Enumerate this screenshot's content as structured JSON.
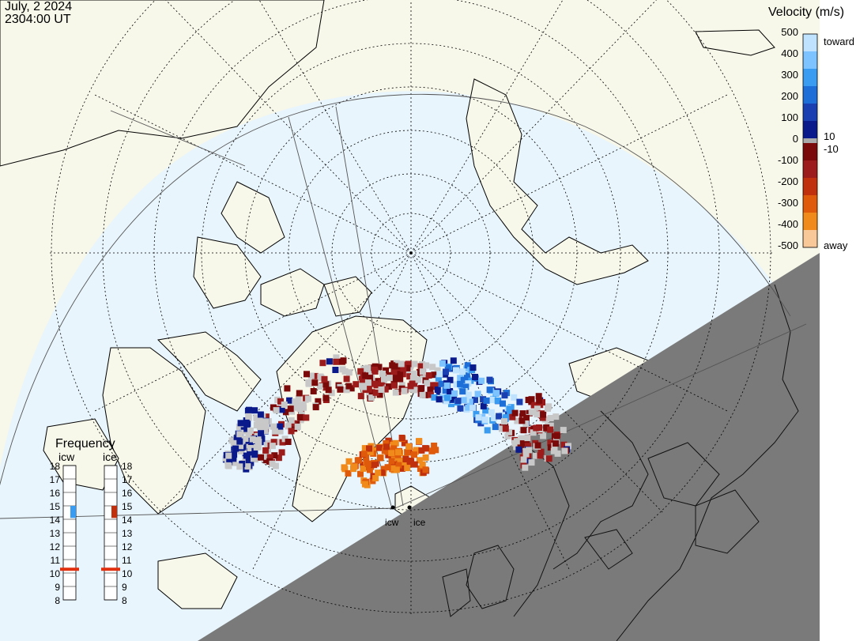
{
  "header": {
    "date": "July, 2 2024",
    "time": "2304:00 UT"
  },
  "legend": {
    "title": "Velocity (m/s)",
    "ticks": [
      "500",
      "400",
      "300",
      "200",
      "100",
      "0",
      "-100",
      "-200",
      "-300",
      "-400",
      "-500"
    ],
    "label_toward": "toward",
    "label_away": "away",
    "label_plus10": "10",
    "label_minus10": "-10",
    "colors_toward": [
      "#bfe3ff",
      "#7cc3ff",
      "#3a9cf0",
      "#1e6ed8",
      "#1a3fb0",
      "#0a1a8a"
    ],
    "colors_away": [
      "#7a0a0a",
      "#9c1b1b",
      "#c0300c",
      "#e05a0c",
      "#f08a1a",
      "#f8c898"
    ],
    "color_zero": "#aaaaaa"
  },
  "frequency": {
    "title": "Frequency",
    "radars": [
      "icw",
      "ice"
    ],
    "levels": [
      "18",
      "17",
      "16",
      "15",
      "14",
      "13",
      "12",
      "11",
      "10",
      "9",
      "8"
    ],
    "icw_marker": "15",
    "ice_marker": "15",
    "icw_marker_color": "#3a9cf0",
    "ice_marker_color": "#c0300c",
    "band_color": "#e03010"
  },
  "map": {
    "site_labels": [
      "icw",
      "ice"
    ],
    "ocean_color": "#e8f5fd",
    "land_color": "#f7f7ea",
    "night_color": "#7a7a7a"
  }
}
